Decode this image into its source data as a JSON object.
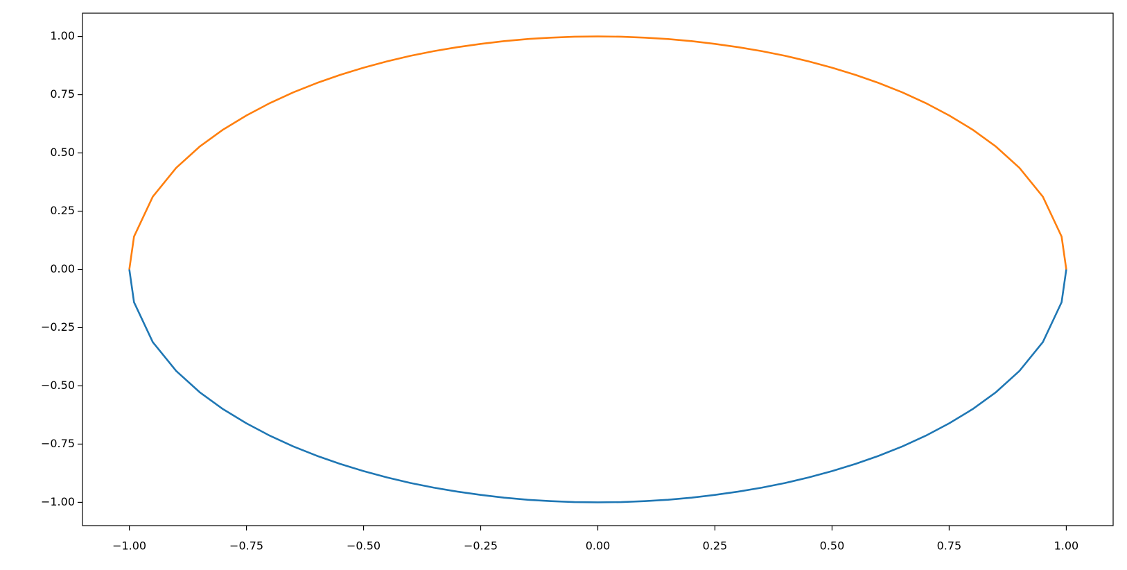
{
  "chart_data": {
    "type": "line",
    "x": [
      -1,
      -0.99,
      -0.95,
      -0.9,
      -0.85,
      -0.8,
      -0.75,
      -0.7,
      -0.65,
      -0.6,
      -0.55,
      -0.5,
      -0.45,
      -0.4,
      -0.35,
      -0.3,
      -0.25,
      -0.2,
      -0.15,
      -0.1,
      -0.05,
      0,
      0.05,
      0.1,
      0.15,
      0.2,
      0.25,
      0.3,
      0.35,
      0.4,
      0.45,
      0.5,
      0.55,
      0.6,
      0.65,
      0.7,
      0.75,
      0.8,
      0.85,
      0.9,
      0.95,
      0.99,
      1
    ],
    "series": [
      {
        "color": "#1f77b4",
        "values": [
          0,
          -0.141,
          -0.312,
          -0.436,
          -0.527,
          -0.6,
          -0.661,
          -0.714,
          -0.76,
          -0.8,
          -0.835,
          -0.866,
          -0.893,
          -0.917,
          -0.937,
          -0.954,
          -0.968,
          -0.98,
          -0.989,
          -0.995,
          -0.999,
          -1,
          -0.999,
          -0.995,
          -0.989,
          -0.98,
          -0.968,
          -0.954,
          -0.937,
          -0.917,
          -0.893,
          -0.866,
          -0.835,
          -0.8,
          -0.76,
          -0.714,
          -0.661,
          -0.6,
          -0.527,
          -0.436,
          -0.312,
          -0.141,
          0
        ]
      },
      {
        "color": "#ff7f0e",
        "values": [
          0,
          0.141,
          0.312,
          0.436,
          0.527,
          0.6,
          0.661,
          0.714,
          0.76,
          0.8,
          0.835,
          0.866,
          0.893,
          0.917,
          0.937,
          0.954,
          0.968,
          0.98,
          0.989,
          0.995,
          0.999,
          1,
          0.999,
          0.995,
          0.989,
          0.98,
          0.968,
          0.954,
          0.937,
          0.917,
          0.893,
          0.866,
          0.835,
          0.8,
          0.76,
          0.714,
          0.661,
          0.6,
          0.527,
          0.436,
          0.312,
          0.141,
          0
        ]
      }
    ],
    "xlim": [
      -1.1,
      1.1
    ],
    "ylim": [
      -1.1,
      1.1
    ],
    "xticks": [
      {
        "value": -1,
        "label": "−1.00"
      },
      {
        "value": -0.75,
        "label": "−0.75"
      },
      {
        "value": -0.5,
        "label": "−0.50"
      },
      {
        "value": -0.25,
        "label": "−0.25"
      },
      {
        "value": 0,
        "label": "0.00"
      },
      {
        "value": 0.25,
        "label": "0.25"
      },
      {
        "value": 0.5,
        "label": "0.50"
      },
      {
        "value": 0.75,
        "label": "0.75"
      },
      {
        "value": 1,
        "label": "1.00"
      }
    ],
    "yticks": [
      {
        "value": -1,
        "label": "−1.00"
      },
      {
        "value": -0.75,
        "label": "−0.75"
      },
      {
        "value": -0.5,
        "label": "−0.50"
      },
      {
        "value": -0.25,
        "label": "−0.25"
      },
      {
        "value": 0,
        "label": "0.00"
      },
      {
        "value": 0.25,
        "label": "0.25"
      },
      {
        "value": 0.5,
        "label": "0.50"
      },
      {
        "value": 0.75,
        "label": "0.75"
      },
      {
        "value": 1,
        "label": "1.00"
      }
    ]
  }
}
